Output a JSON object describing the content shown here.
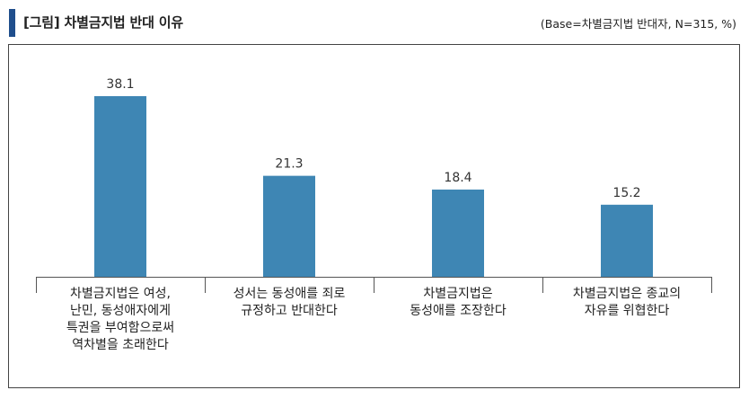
{
  "header": {
    "title": "[그림] 차별금지법 반대 이유",
    "base_note": "(Base=차별금지법 반대자, N=315, %)",
    "accent_color": "#1f4e8c"
  },
  "chart_data": {
    "type": "bar",
    "categories": [
      "차별금지법은 여성,\n난민, 동성애자에게\n특권을 부여함으로써\n역차별을 초래한다",
      "성서는 동성애를 죄로\n규정하고 반대한다",
      "차별금지법은\n동성애를 조장한다",
      "차별금지법은 종교의\n자유를 위협한다"
    ],
    "values": [
      38.1,
      21.3,
      18.4,
      15.2
    ],
    "bar_color": "#3e86b4",
    "title": "",
    "xlabel": "",
    "ylabel": "",
    "ylim": [
      0,
      40
    ],
    "grid": false
  }
}
